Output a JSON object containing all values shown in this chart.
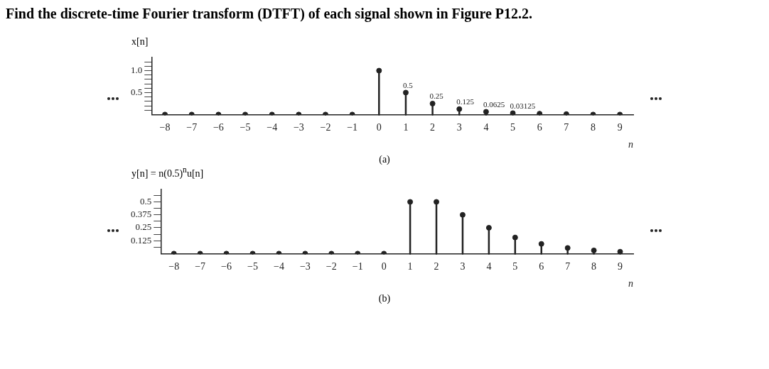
{
  "chart_data": [
    {
      "type": "lollipop",
      "title": "Find the discrete-time Fourier transform (DTFT) of each signal shown in Figure P12.2.",
      "xlabel": "n",
      "ylabel": "x[n]",
      "annotations": [
        "(a)"
      ],
      "categories": [
        "−8",
        "−7",
        "−6",
        "−5",
        "−4",
        "−3",
        "−2",
        "−1",
        "0",
        "1",
        "2",
        "3",
        "4",
        "5",
        "6",
        "7",
        "8",
        "9"
      ],
      "values": [
        0,
        0,
        0,
        0,
        0,
        0,
        0,
        0,
        1.0,
        0.5,
        0.25,
        0.125,
        0.0625,
        0.03125,
        0.02,
        0.01,
        0,
        0
      ],
      "value_labels": [
        null,
        null,
        null,
        null,
        null,
        null,
        null,
        null,
        null,
        "0.5",
        "0.25",
        "0.125",
        "0.0625",
        "0.03125",
        null,
        null,
        null,
        null
      ],
      "color": "#222222",
      "marker": "circle",
      "ylim": [
        0,
        1.3
      ],
      "yticks": [
        {
          "value": 0.1,
          "label": null
        },
        {
          "value": 0.2,
          "label": null
        },
        {
          "value": 0.3,
          "label": null
        },
        {
          "value": 0.4,
          "label": null
        },
        0.5,
        {
          "value": 0.6,
          "label": null
        },
        {
          "value": 0.7,
          "label": null
        },
        {
          "value": 0.8,
          "label": null
        },
        {
          "value": 0.9,
          "label": null
        },
        {
          "value": 1,
          "label": "1.0"
        },
        {
          "value": 1.1,
          "label": null
        },
        {
          "value": 1.2,
          "label": null
        }
      ]
    },
    {
      "type": "lollipop",
      "xlabel": "n",
      "ylabel": "y[n] = n(0.5)$^{n}$u[n]",
      "annotations": [
        "(b)"
      ],
      "categories": [
        "−8",
        "−7",
        "−6",
        "−5",
        "−4",
        "−3",
        "−2",
        "−1",
        "0",
        "1",
        "2",
        "3",
        "4",
        "5",
        "6",
        "7",
        "8",
        "9"
      ],
      "values": [
        0,
        0,
        0,
        0,
        0,
        0,
        0,
        0,
        0,
        0.5,
        0.5,
        0.375,
        0.25,
        0.156,
        0.094,
        0.055,
        0.031,
        0.018
      ],
      "color": "#222222",
      "marker": "circle",
      "ylim": [
        0,
        0.62
      ],
      "yticks": [
        {
          "value": 0.0625,
          "label": null
        },
        0.125,
        {
          "value": 0.1875,
          "label": null
        },
        0.25,
        {
          "value": 0.3125,
          "label": null
        },
        0.375,
        {
          "value": 0.4375,
          "label": null
        },
        0.5,
        {
          "value": 0.5625,
          "label": null
        }
      ]
    }
  ]
}
